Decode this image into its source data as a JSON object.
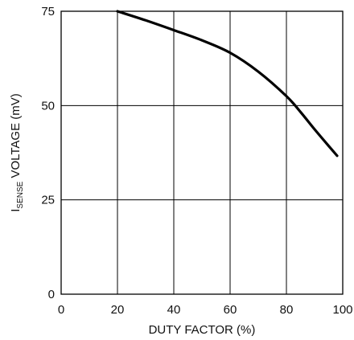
{
  "chart_data": {
    "type": "line",
    "title": "",
    "xlabel": "DUTY FACTOR (%)",
    "ylabel": {
      "main": "I",
      "subscript": "SENSE",
      "rest": " VOLTAGE (mV)"
    },
    "xlim": [
      0,
      100
    ],
    "ylim": [
      0,
      75
    ],
    "xticks": [
      0,
      20,
      40,
      60,
      80,
      100
    ],
    "yticks": [
      0,
      25,
      50,
      75
    ],
    "grid": true,
    "colors": {
      "line": "#000000",
      "grid": "#000000",
      "background": "#ffffff"
    },
    "series": [
      {
        "x": [
          20,
          30,
          40,
          50,
          60,
          70,
          80,
          85,
          90,
          95,
          98
        ],
        "y": [
          75,
          72.6,
          70,
          67.3,
          64,
          59,
          52.5,
          48.3,
          43.7,
          39.3,
          36.7
        ]
      }
    ]
  }
}
